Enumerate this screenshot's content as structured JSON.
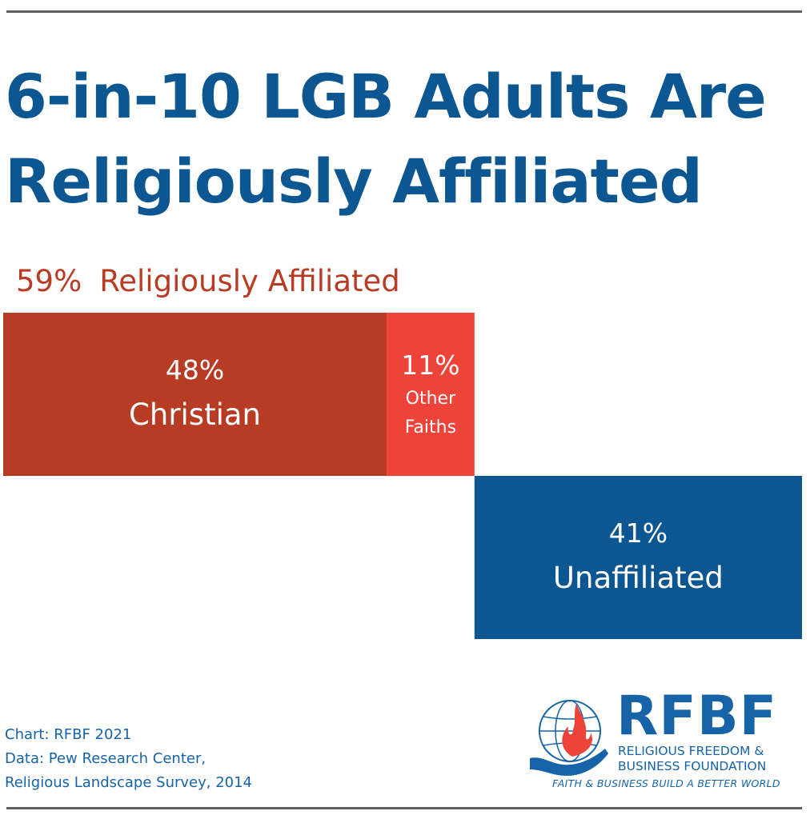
{
  "title": {
    "line1": "6-in-10 LGB Adults Are",
    "line2": "Religiously Affiliated"
  },
  "affiliated_summary": {
    "pct": "59%",
    "label": "Religiously Affiliated"
  },
  "chart_data": {
    "type": "bar",
    "orientation": "horizontal-stacked-offset",
    "unit": "%",
    "total": 100,
    "segments": [
      {
        "key": "christian",
        "pct_label": "48%",
        "label": "Christian",
        "value": 48,
        "color": "#b83b23",
        "row": 0
      },
      {
        "key": "other",
        "pct_label": "11%",
        "label_line1": "Other",
        "label_line2": "Faiths",
        "value": 11,
        "color": "#ee4338",
        "row": 0
      },
      {
        "key": "unaffiliated",
        "pct_label": "41%",
        "label": "Unaffiliated",
        "value": 41,
        "color": "#0c5792",
        "row": 1
      }
    ],
    "group_label": "59% Religiously Affiliated",
    "grid": false
  },
  "footer": {
    "line1": "Chart: RFBF 2021",
    "line2": "Data: Pew Research Center,",
    "line3": "Religious Landscape Survey, 2014"
  },
  "logo": {
    "acronym": "RFBF",
    "org_line1": "RELIGIOUS FREEDOM &",
    "org_line2": "BUSINESS FOUNDATION",
    "tagline": "FAITH & BUSINESS BUILD A BETTER WORLD",
    "icon": "globe-flame-hand-icon",
    "color_blue": "#1663a8",
    "color_red": "#ee4338"
  }
}
